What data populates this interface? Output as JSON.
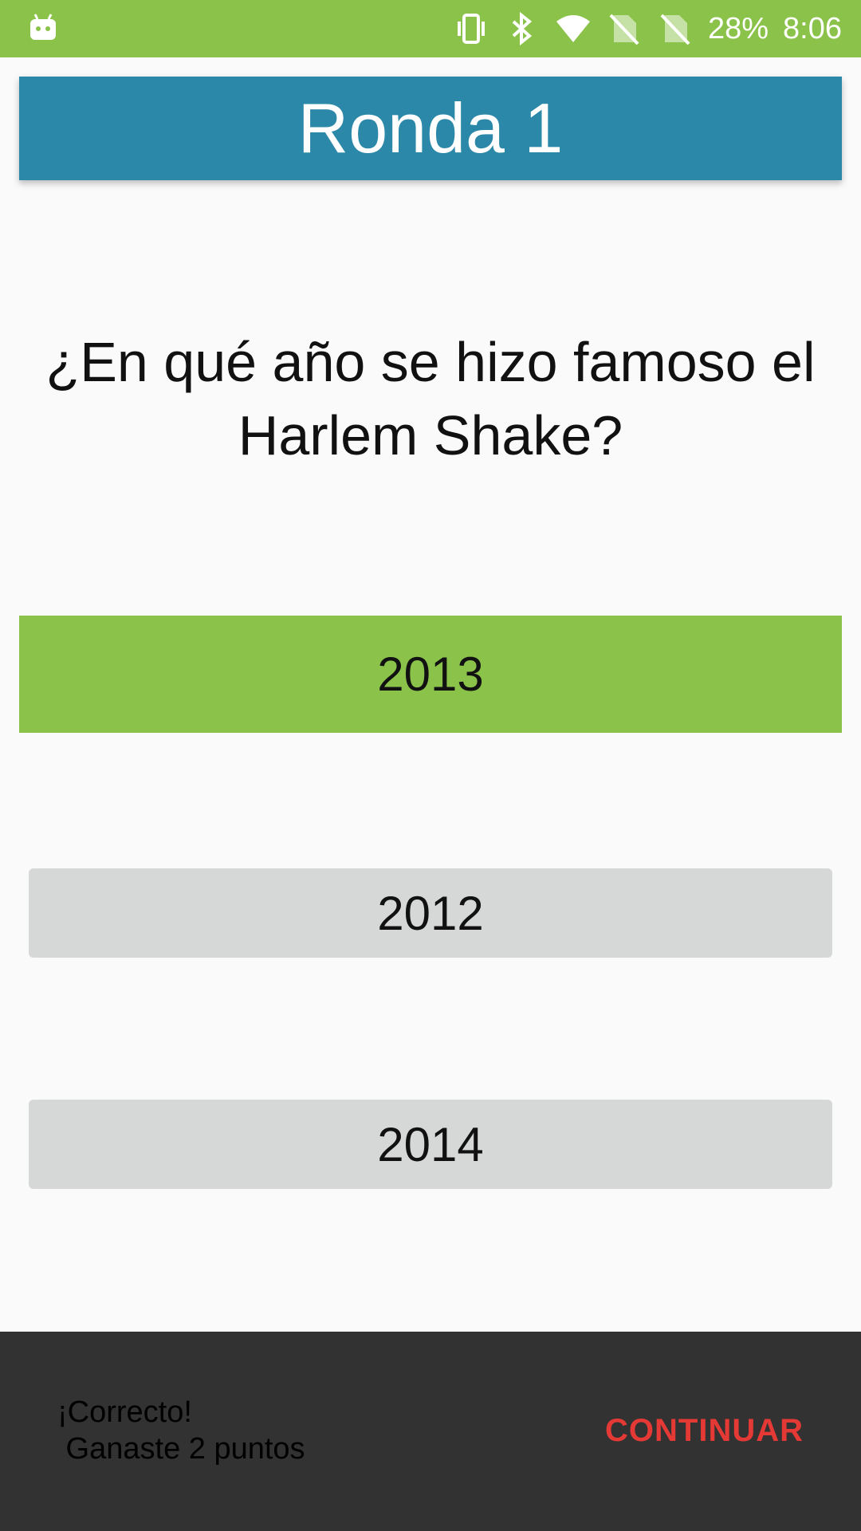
{
  "status_bar": {
    "battery": "28%",
    "time": "8:06",
    "icons": [
      "android-icon",
      "vibrate-icon",
      "bluetooth-icon",
      "wifi-icon",
      "no-sim-icon",
      "no-sim-icon"
    ]
  },
  "header": {
    "title": "Ronda 1",
    "bg": "#2b88a8"
  },
  "question": {
    "text": "¿En qué año se hizo famoso el Harlem Shake?"
  },
  "answers": [
    {
      "label": "2013",
      "state": "correct",
      "color": "#8bc34a"
    },
    {
      "label": "2012",
      "state": "normal",
      "color": "#d6d7d7"
    },
    {
      "label": "2014",
      "state": "normal",
      "color": "#d6d7d7"
    }
  ],
  "snackbar": {
    "message": "¡Correcto!\n Ganaste 2 puntos",
    "action": "CONTINUAR",
    "action_color": "#e53935"
  }
}
